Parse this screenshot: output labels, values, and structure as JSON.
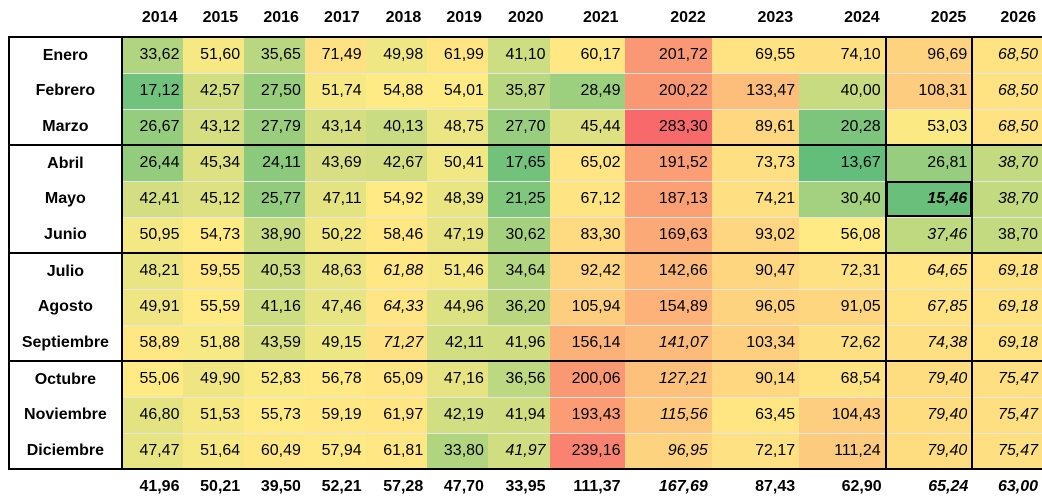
{
  "years": [
    "2014",
    "2015",
    "2016",
    "2017",
    "2018",
    "2019",
    "2020",
    "2021",
    "2022",
    "2023",
    "2024",
    "2025",
    "2026"
  ],
  "months": [
    "Enero",
    "Febrero",
    "Marzo",
    "Abril",
    "Mayo",
    "Junio",
    "Julio",
    "Agosto",
    "Septiembre",
    "Octubre",
    "Noviembre",
    "Diciembre"
  ],
  "rows": [
    [
      "33,62",
      "51,60",
      "35,65",
      "71,49",
      "49,98",
      "61,99",
      "41,10",
      "60,17",
      "201,72",
      "69,55",
      "74,10",
      "96,69",
      "68,50"
    ],
    [
      "17,12",
      "42,57",
      "27,50",
      "51,74",
      "54,88",
      "54,01",
      "35,87",
      "28,49",
      "200,22",
      "133,47",
      "40,00",
      "108,31",
      "68,50"
    ],
    [
      "26,67",
      "43,12",
      "27,79",
      "43,14",
      "40,13",
      "48,75",
      "27,70",
      "45,44",
      "283,30",
      "89,61",
      "20,28",
      "53,03",
      "68,50"
    ],
    [
      "26,44",
      "45,34",
      "24,11",
      "43,69",
      "42,67",
      "50,41",
      "17,65",
      "65,02",
      "191,52",
      "73,73",
      "13,67",
      "26,81",
      "38,70"
    ],
    [
      "42,41",
      "45,12",
      "25,77",
      "47,11",
      "54,92",
      "48,39",
      "21,25",
      "67,12",
      "187,13",
      "74,21",
      "30,40",
      "15,46",
      "38,70"
    ],
    [
      "50,95",
      "54,73",
      "38,90",
      "50,22",
      "58,46",
      "47,19",
      "30,62",
      "83,30",
      "169,63",
      "93,02",
      "56,08",
      "37,46",
      "38,70"
    ],
    [
      "48,21",
      "59,55",
      "40,53",
      "48,63",
      "61,88",
      "51,46",
      "34,64",
      "92,42",
      "142,66",
      "90,47",
      "72,31",
      "64,65",
      "69,18"
    ],
    [
      "49,91",
      "55,59",
      "41,16",
      "47,46",
      "64,33",
      "44,96",
      "36,20",
      "105,94",
      "154,89",
      "96,05",
      "91,05",
      "67,85",
      "69,18"
    ],
    [
      "58,89",
      "51,88",
      "43,59",
      "49,15",
      "71,27",
      "42,11",
      "41,96",
      "156,14",
      "141,07",
      "103,34",
      "72,62",
      "74,38",
      "69,18"
    ],
    [
      "55,06",
      "49,90",
      "52,83",
      "56,78",
      "65,09",
      "47,16",
      "36,56",
      "200,06",
      "127,21",
      "90,14",
      "68,54",
      "79,40",
      "75,47"
    ],
    [
      "46,80",
      "51,53",
      "55,73",
      "59,19",
      "61,97",
      "42,19",
      "41,94",
      "193,43",
      "115,56",
      "63,45",
      "104,43",
      "79,40",
      "75,47"
    ],
    [
      "47,47",
      "51,64",
      "60,49",
      "57,94",
      "61,81",
      "33,80",
      "41,97",
      "239,16",
      "96,95",
      "72,17",
      "111,24",
      "79,40",
      "75,47"
    ]
  ],
  "totals": [
    "41,96",
    "50,21",
    "39,50",
    "52,21",
    "57,28",
    "47,70",
    "33,95",
    "111,37",
    "167,69",
    "87,43",
    "62,90",
    "65,24",
    "63,00"
  ],
  "italic_cells": [
    [
      4,
      11
    ],
    [
      5,
      11
    ],
    [
      6,
      4
    ],
    [
      6,
      11
    ],
    [
      6,
      12
    ],
    [
      7,
      4
    ],
    [
      7,
      11
    ],
    [
      7,
      12
    ],
    [
      8,
      4
    ],
    [
      8,
      8
    ],
    [
      8,
      11
    ],
    [
      8,
      12
    ],
    [
      9,
      8
    ],
    [
      9,
      11
    ],
    [
      9,
      12
    ],
    [
      10,
      8
    ],
    [
      10,
      11
    ],
    [
      10,
      12
    ],
    [
      11,
      6
    ],
    [
      11,
      8
    ],
    [
      11,
      11
    ],
    [
      11,
      12
    ],
    [
      0,
      12
    ],
    [
      1,
      12
    ],
    [
      2,
      12
    ],
    [
      3,
      12
    ],
    [
      4,
      12
    ]
  ],
  "grey_cells": [
    [
      5,
      11
    ],
    [
      6,
      11
    ],
    [
      7,
      11
    ],
    [
      8,
      11
    ],
    [
      9,
      11
    ],
    [
      10,
      11
    ],
    [
      11,
      11
    ],
    [
      0,
      12
    ],
    [
      1,
      12
    ],
    [
      2,
      12
    ],
    [
      3,
      12
    ],
    [
      4,
      12
    ],
    [
      5,
      12
    ],
    [
      6,
      12
    ],
    [
      7,
      12
    ],
    [
      8,
      12
    ],
    [
      9,
      12
    ],
    [
      10,
      12
    ],
    [
      11,
      12
    ]
  ],
  "highlight_cell": [
    4,
    11
  ],
  "italic_totals": [
    8,
    11,
    12
  ],
  "grey_totals": [
    12
  ],
  "colors": {
    "low": "#63be7b",
    "mid": "#ffeb84",
    "high": "#f8696b"
  }
}
